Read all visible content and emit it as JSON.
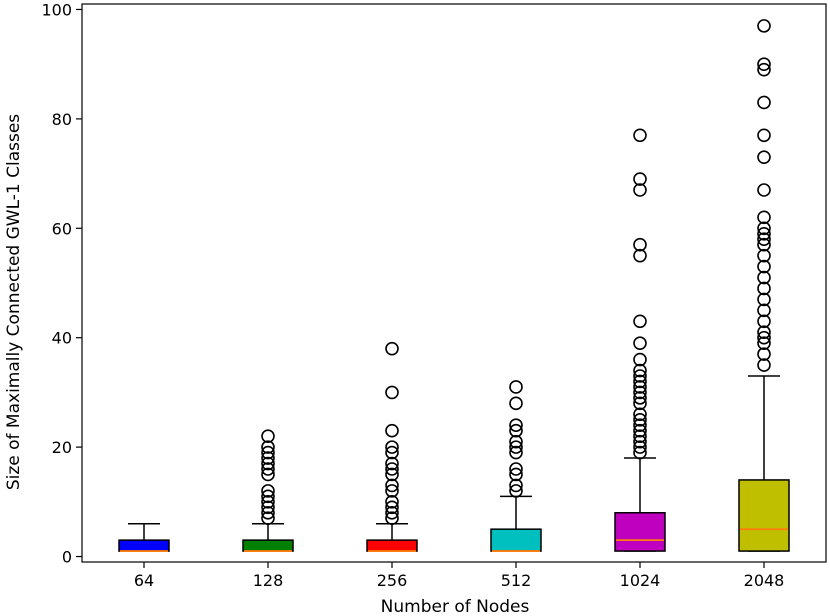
{
  "chart_data": {
    "type": "box",
    "title": "",
    "xlabel": "Number of Nodes",
    "ylabel": "Size of Maximally Connected GWL-1 Classes",
    "ylim": [
      -1,
      101
    ],
    "yticks": [
      0,
      20,
      40,
      60,
      80,
      100
    ],
    "grid": false,
    "categories": [
      "64",
      "128",
      "256",
      "512",
      "1024",
      "2048"
    ],
    "boxes": [
      {
        "category": "64",
        "color": "#0000ff",
        "whisker_low": 1,
        "q1": 1,
        "median": 1,
        "q3": 3,
        "whisker_high": 6,
        "outliers": []
      },
      {
        "category": "128",
        "color": "#008000",
        "whisker_low": 1,
        "q1": 1,
        "median": 1,
        "q3": 3,
        "whisker_high": 6,
        "outliers": [
          7,
          8,
          9,
          10,
          11,
          12,
          15,
          16,
          17,
          18,
          19,
          20,
          22
        ]
      },
      {
        "category": "256",
        "color": "#ff0000",
        "whisker_low": 1,
        "q1": 1,
        "median": 1,
        "q3": 3,
        "whisker_high": 6,
        "outliers": [
          7,
          8,
          9,
          10,
          12,
          13,
          15,
          16,
          17,
          19,
          20,
          23,
          30,
          38
        ]
      },
      {
        "category": "512",
        "color": "#00bfbf",
        "whisker_low": 1,
        "q1": 1,
        "median": 1,
        "q3": 5,
        "whisker_high": 11,
        "outliers": [
          12,
          13,
          15,
          16,
          19,
          20,
          21,
          23,
          24,
          28,
          31
        ]
      },
      {
        "category": "1024",
        "color": "#bf00bf",
        "whisker_low": 1,
        "q1": 1,
        "median": 3,
        "q3": 8,
        "whisker_high": 18,
        "outliers": [
          19,
          20,
          21,
          22,
          23,
          24,
          25,
          26,
          28,
          29,
          30,
          31,
          32,
          33,
          34,
          36,
          39,
          43,
          55,
          57,
          67,
          69,
          77
        ]
      },
      {
        "category": "2048",
        "color": "#bfbf00",
        "whisker_low": 1,
        "q1": 1,
        "median": 5,
        "q3": 14,
        "whisker_high": 33,
        "outliers": [
          35,
          37,
          39,
          40,
          41,
          43,
          45,
          47,
          49,
          51,
          53,
          55,
          57,
          58,
          59,
          60,
          62,
          67,
          73,
          77,
          83,
          89,
          90,
          97
        ]
      }
    ],
    "median_color": "#ff7f0e",
    "outlier_marker": "open-circle"
  }
}
